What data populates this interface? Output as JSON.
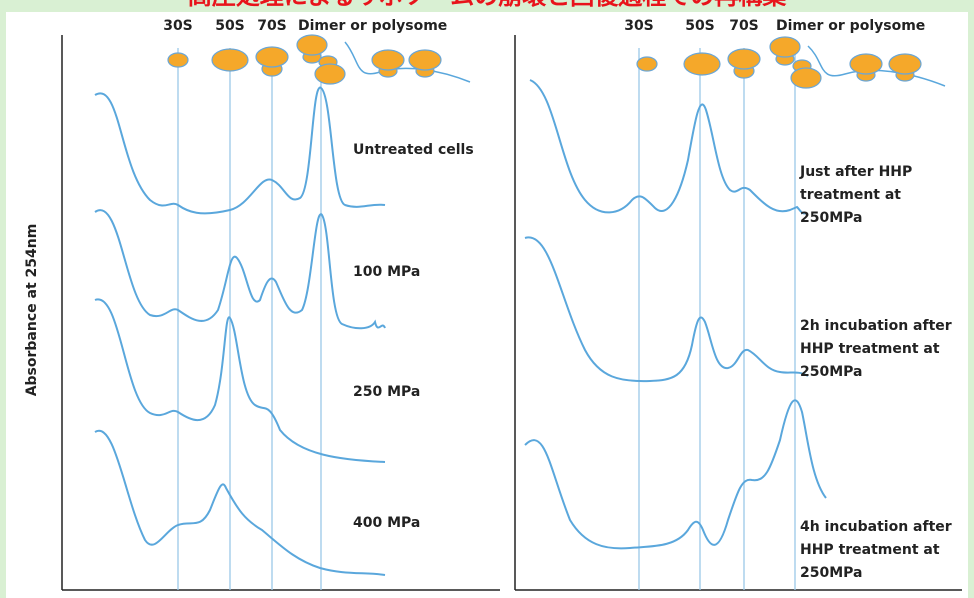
{
  "header": {
    "title": "高圧処理によるリボソームの崩壊と回復過程での再構築"
  },
  "y_axis_label": "Absorbance at 254nm",
  "left_panel": {
    "ribosome_labels": [
      "30S",
      "50S",
      "70S",
      "Dimer or polysome"
    ],
    "samples": [
      "Untreated cells",
      "100 MPa",
      "250 MPa",
      "400 MPa"
    ]
  },
  "right_panel": {
    "ribosome_labels": [
      "30S",
      "50S",
      "70S",
      "Dimer or polysome"
    ],
    "samples": [
      [
        "Just after HHP",
        "treatment at",
        "250MPa"
      ],
      [
        "2h incubation after",
        "HHP treatment at",
        "250MPa"
      ],
      [
        "4h incubation after",
        "HHP treatment at",
        "250MPa"
      ]
    ]
  }
}
